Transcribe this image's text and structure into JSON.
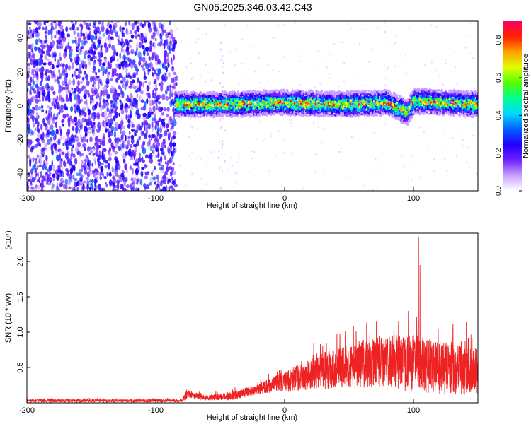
{
  "title": "GN05.2025.346.03.42.C43",
  "chart_data": [
    {
      "type": "heatmap",
      "xlabel": "Height of straight line (km)",
      "ylabel": "Frequency (Hz)",
      "xlim": [
        -200,
        150
      ],
      "ylim": [
        -50,
        50
      ],
      "xticks": [
        -200,
        -100,
        0,
        100
      ],
      "yticks": [
        -40,
        -20,
        0,
        20,
        40
      ],
      "colorbar": {
        "label": "Normalized spectral amplitude",
        "range": [
          0,
          0.9
        ],
        "ticks": [
          "0.0",
          "0.2",
          "0.4",
          "0.6",
          "0.8"
        ],
        "colors": [
          "#ffffff",
          "#c8a0ff",
          "#7020ff",
          "#2000ff",
          "#0060ff",
          "#00d8ff",
          "#00ff90",
          "#50ff00",
          "#e0ff00",
          "#ffa000",
          "#ff2000",
          "#ff0060"
        ]
      },
      "noise_region": {
        "x": [
          -200,
          -85
        ],
        "amplitude": [
          0.1,
          0.3
        ]
      },
      "band": {
        "x": [
          -85,
          150
        ],
        "center_hz": [
          {
            "x": -85,
            "y": 1
          },
          {
            "x": -40,
            "y": 1
          },
          {
            "x": 0,
            "y": 2
          },
          {
            "x": 40,
            "y": 1
          },
          {
            "x": 80,
            "y": 2
          },
          {
            "x": 95,
            "y": -4
          },
          {
            "x": 100,
            "y": 3
          },
          {
            "x": 150,
            "y": 1
          }
        ],
        "halfwidth_hz": 5,
        "peak_amplitude": 0.85
      },
      "streak": {
        "x": [
          -52,
          -47
        ],
        "y": [
          -50,
          50
        ]
      }
    },
    {
      "type": "line",
      "xlabel": "Height of straight line (km)",
      "ylabel": "SNR (10 * v/v)",
      "y_multiplier": "(x10⁴)",
      "xlim": [
        -200,
        150
      ],
      "ylim": [
        0,
        2.4
      ],
      "xticks": [
        -200,
        -100,
        0,
        100
      ],
      "yticks": [
        "0.5",
        "1.0",
        "1.5",
        "2.0"
      ],
      "color": "#ee2222",
      "envelope": [
        {
          "x": -200,
          "mean": 0.03,
          "peak": 0.06
        },
        {
          "x": -80,
          "mean": 0.03,
          "peak": 0.06
        },
        {
          "x": -75,
          "mean": 0.12,
          "peak": 0.2
        },
        {
          "x": -60,
          "mean": 0.07,
          "peak": 0.12
        },
        {
          "x": -40,
          "mean": 0.1,
          "peak": 0.18
        },
        {
          "x": -20,
          "mean": 0.2,
          "peak": 0.3
        },
        {
          "x": 0,
          "mean": 0.3,
          "peak": 0.5
        },
        {
          "x": 20,
          "mean": 0.4,
          "peak": 0.7
        },
        {
          "x": 40,
          "mean": 0.5,
          "peak": 0.9
        },
        {
          "x": 60,
          "mean": 0.55,
          "peak": 1.0
        },
        {
          "x": 80,
          "mean": 0.6,
          "peak": 1.1
        },
        {
          "x": 100,
          "mean": 0.55,
          "peak": 1.1
        },
        {
          "x": 120,
          "mean": 0.5,
          "peak": 1.0
        },
        {
          "x": 150,
          "mean": 0.45,
          "peak": 0.9
        }
      ],
      "spikes": [
        {
          "x": 96,
          "y": 1.3
        },
        {
          "x": 104,
          "y": 2.35
        },
        {
          "x": 105,
          "y": 1.95
        },
        {
          "x": 141,
          "y": 1.15
        }
      ]
    }
  ]
}
